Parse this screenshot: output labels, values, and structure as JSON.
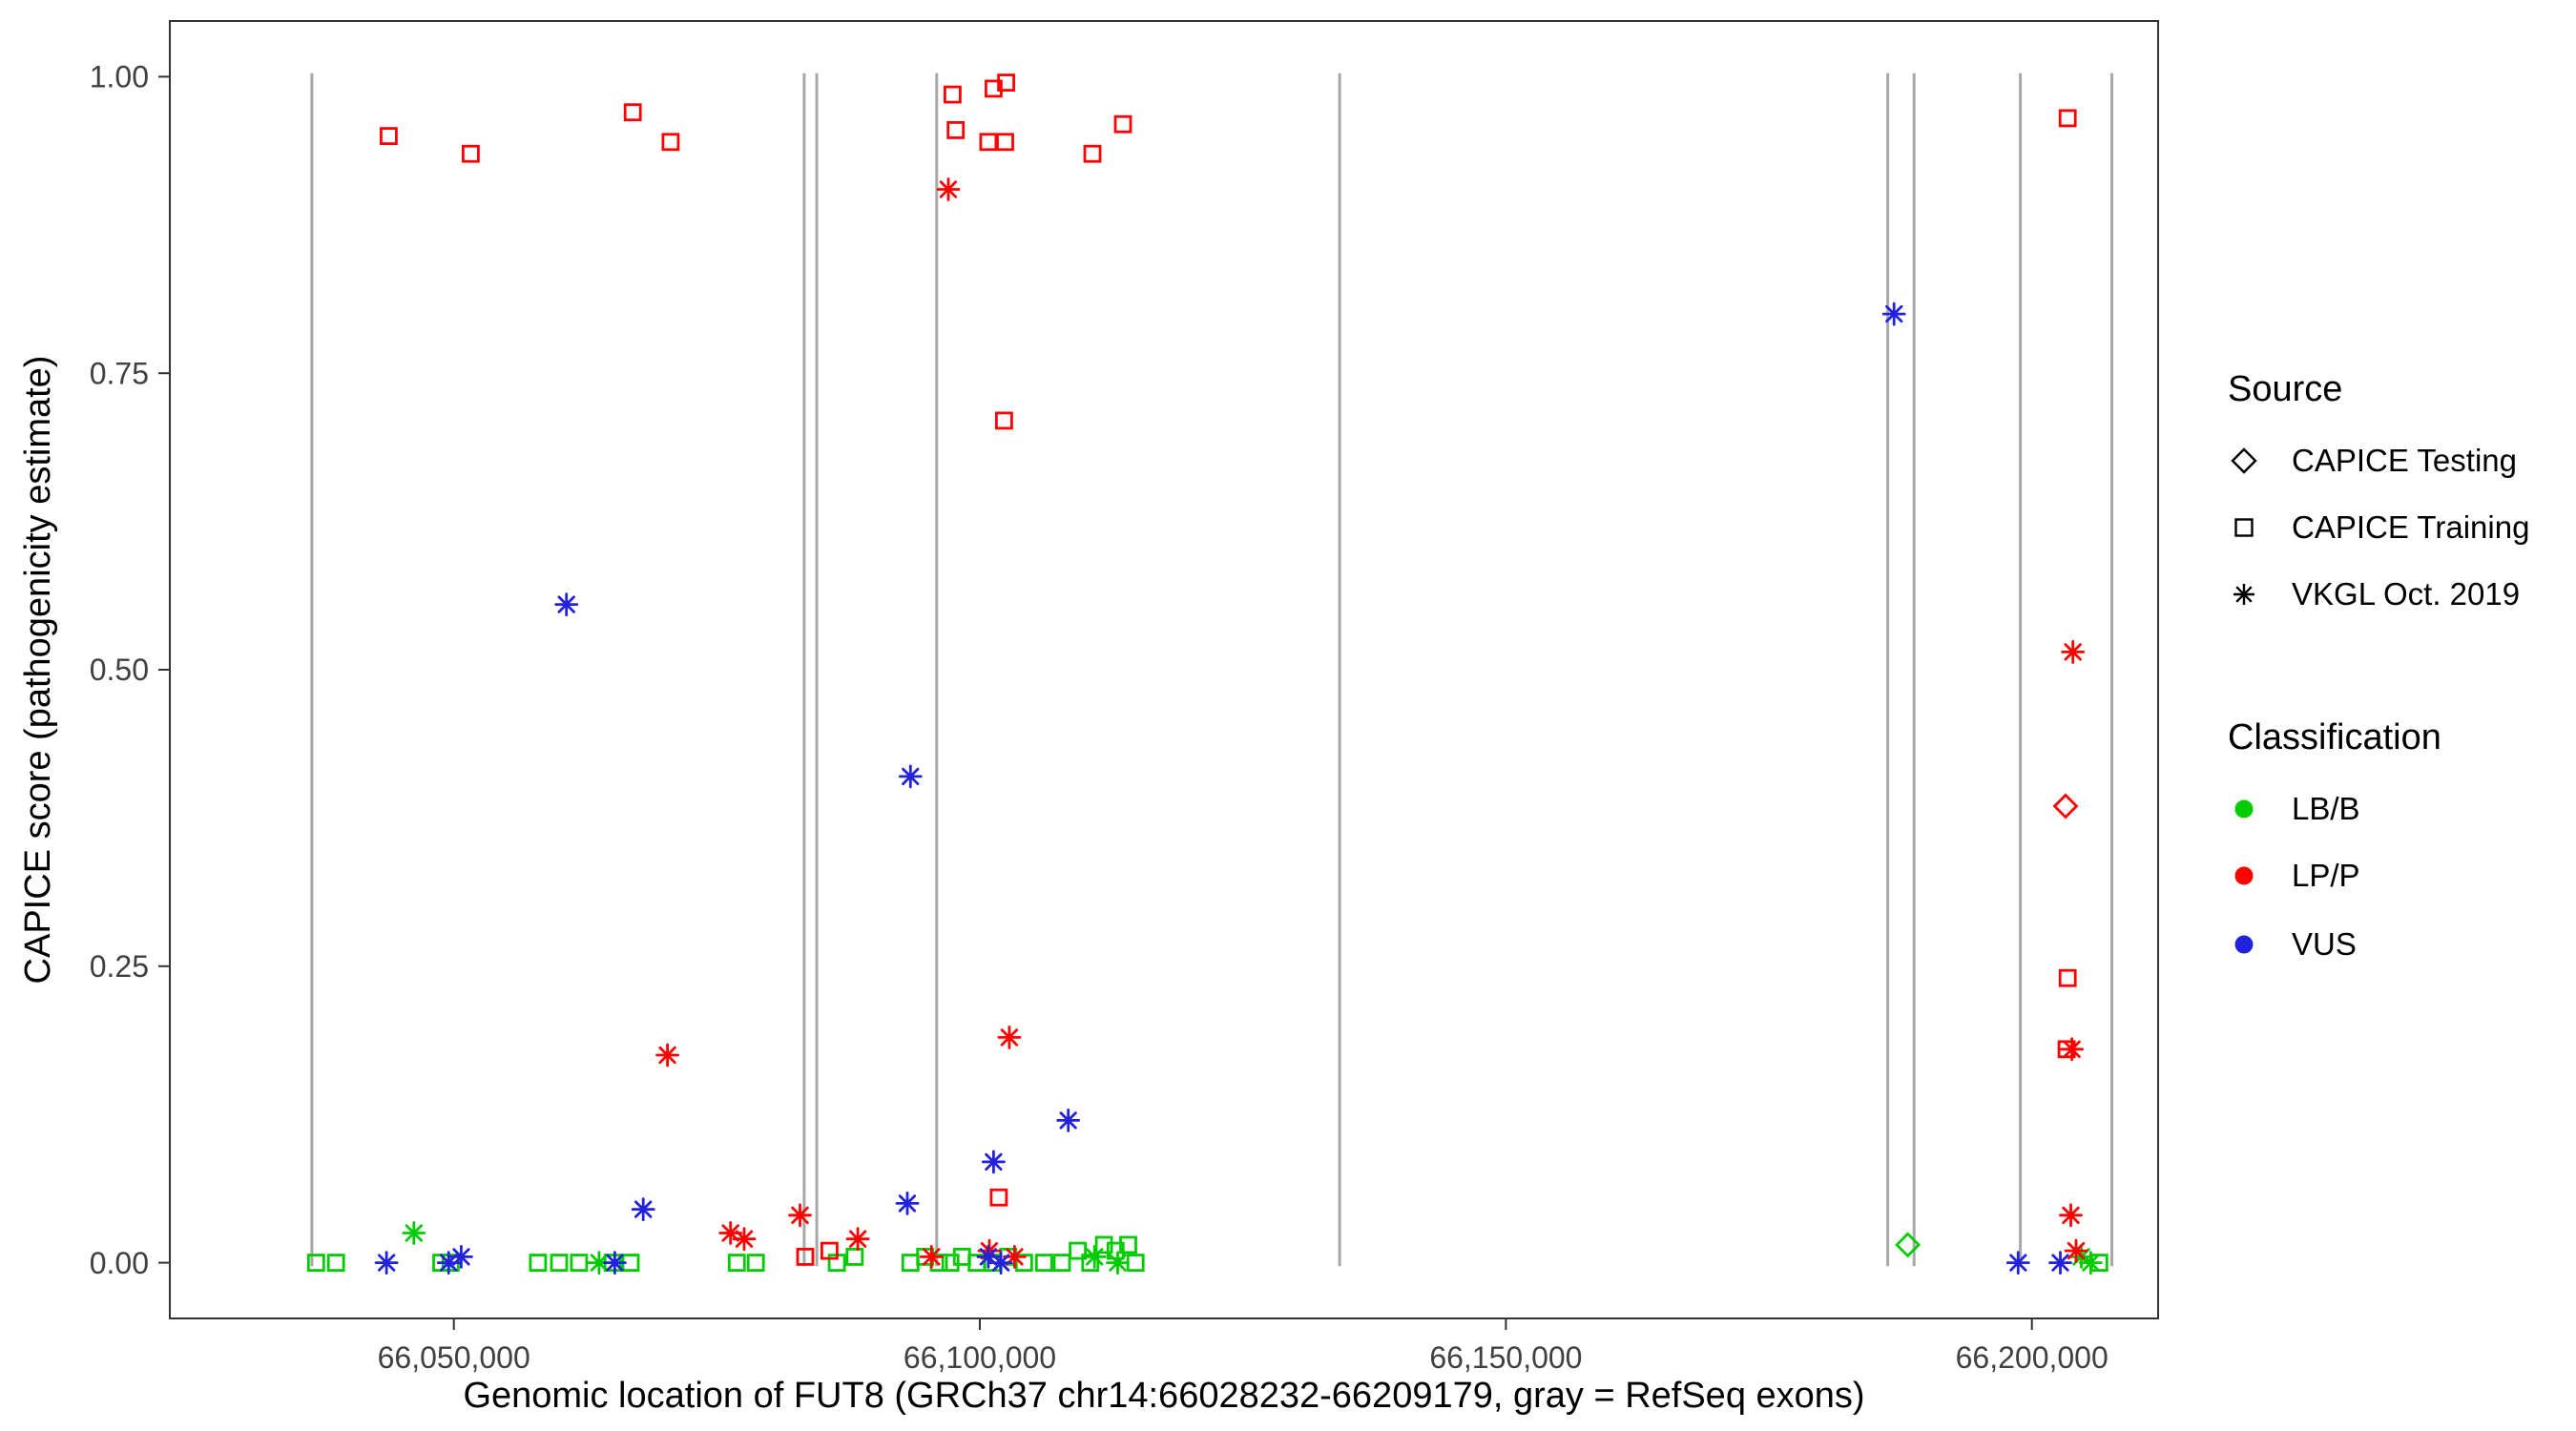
{
  "figure": {
    "background": "#FFFFFF"
  },
  "chart_data": {
    "type": "scatter",
    "title": "",
    "xlabel": "Genomic location of FUT8 (GRCh37 chr14:66028232-66209179, gray = RefSeq exons)",
    "ylabel": "CAPICE score (pathogenicity estimate)",
    "xlim": [
      66023000,
      66212000
    ],
    "ylim": [
      -0.047,
      1.047
    ],
    "grid": false,
    "panel_border_color": "#333333",
    "exon_color": "#A8A8A8",
    "x_ticks": [
      {
        "value": 66050000,
        "label": "66,050,000"
      },
      {
        "value": 66100000,
        "label": "66,100,000"
      },
      {
        "value": 66150000,
        "label": "66,150,000"
      },
      {
        "value": 66200000,
        "label": "66,200,000"
      }
    ],
    "y_ticks": [
      {
        "value": 0.0,
        "label": "0.00"
      },
      {
        "value": 0.25,
        "label": "0.25"
      },
      {
        "value": 0.5,
        "label": "0.50"
      },
      {
        "value": 0.75,
        "label": "0.75"
      },
      {
        "value": 1.0,
        "label": "1.00"
      }
    ],
    "refseq_exons_x": [
      66036500,
      66083300,
      66084500,
      66095900,
      66134200,
      66186300,
      66188800,
      66198900,
      66207600
    ],
    "colors": {
      "LB/B": "#00CC00",
      "LP/P": "#FF0000",
      "VUS": "#2222DD"
    },
    "shapes": {
      "CAPICE Testing": "diamond",
      "CAPICE Training": "square",
      "VKGL Oct. 2019": "asterisk"
    },
    "series": [
      {
        "source": "CAPICE Testing",
        "classification": "LB/B",
        "points": [
          [
            66188200,
            0.015
          ]
        ]
      },
      {
        "source": "CAPICE Testing",
        "classification": "LP/P",
        "points": [
          [
            66203200,
            0.385
          ]
        ]
      },
      {
        "source": "CAPICE Training",
        "classification": "LB/B",
        "points": [
          [
            66036900,
            0.0
          ],
          [
            66038800,
            0.0
          ],
          [
            66048800,
            0.0
          ],
          [
            66049700,
            0.0
          ],
          [
            66058000,
            0.0
          ],
          [
            66060000,
            0.0
          ],
          [
            66061900,
            0.0
          ],
          [
            66065100,
            0.0
          ],
          [
            66066800,
            0.0
          ],
          [
            66076900,
            0.0
          ],
          [
            66078700,
            0.0
          ],
          [
            66086400,
            0.0
          ],
          [
            66088100,
            0.005
          ],
          [
            66093400,
            0.0
          ],
          [
            66094800,
            0.005
          ],
          [
            66096100,
            0.0
          ],
          [
            66097200,
            0.0
          ],
          [
            66098300,
            0.005
          ],
          [
            66099700,
            0.0
          ],
          [
            66101200,
            0.0
          ],
          [
            66102700,
            0.005
          ],
          [
            66104200,
            0.0
          ],
          [
            66106100,
            0.0
          ],
          [
            66107800,
            0.0
          ],
          [
            66109300,
            0.01
          ],
          [
            66110500,
            0.0
          ],
          [
            66111800,
            0.015
          ],
          [
            66112900,
            0.01
          ],
          [
            66114100,
            0.015
          ],
          [
            66114800,
            0.0
          ],
          [
            66206400,
            0.0
          ]
        ]
      },
      {
        "source": "CAPICE Training",
        "classification": "LP/P",
        "points": [
          [
            66043800,
            0.95
          ],
          [
            66051600,
            0.935
          ],
          [
            66067000,
            0.97
          ],
          [
            66070600,
            0.945
          ],
          [
            66097400,
            0.985
          ],
          [
            66097700,
            0.955
          ],
          [
            66100800,
            0.945
          ],
          [
            66101300,
            0.99
          ],
          [
            66102500,
            0.995
          ],
          [
            66102400,
            0.945
          ],
          [
            66102300,
            0.71
          ],
          [
            66110700,
            0.935
          ],
          [
            66113600,
            0.96
          ],
          [
            66203400,
            0.965
          ],
          [
            66203400,
            0.24
          ],
          [
            66203300,
            0.18
          ],
          [
            66101800,
            0.055
          ],
          [
            66083400,
            0.005
          ],
          [
            66085700,
            0.01
          ]
        ]
      },
      {
        "source": "VKGL Oct. 2019",
        "classification": "LB/B",
        "points": [
          [
            66046200,
            0.025
          ],
          [
            66063800,
            0.0
          ],
          [
            66110900,
            0.005
          ],
          [
            66113100,
            0.0
          ],
          [
            66204700,
            0.005
          ],
          [
            66205600,
            0.0
          ]
        ]
      },
      {
        "source": "VKGL Oct. 2019",
        "classification": "LP/P",
        "points": [
          [
            66097000,
            0.905
          ],
          [
            66070300,
            0.175
          ],
          [
            66102800,
            0.19
          ],
          [
            66203900,
            0.515
          ],
          [
            66203800,
            0.18
          ],
          [
            66203700,
            0.04
          ],
          [
            66076300,
            0.025
          ],
          [
            66077600,
            0.02
          ],
          [
            66082900,
            0.04
          ],
          [
            66088400,
            0.02
          ],
          [
            66095400,
            0.005
          ],
          [
            66100900,
            0.01
          ],
          [
            66103300,
            0.005
          ],
          [
            66204200,
            0.01
          ]
        ]
      },
      {
        "source": "VKGL Oct. 2019",
        "classification": "VUS",
        "points": [
          [
            66060700,
            0.555
          ],
          [
            66093400,
            0.41
          ],
          [
            66186900,
            0.8
          ],
          [
            66068000,
            0.045
          ],
          [
            66093100,
            0.05
          ],
          [
            66101300,
            0.085
          ],
          [
            66108400,
            0.12
          ],
          [
            66043600,
            0.0
          ],
          [
            66049500,
            0.0
          ],
          [
            66050700,
            0.005
          ],
          [
            66065300,
            0.0
          ],
          [
            66100800,
            0.005
          ],
          [
            66102000,
            0.0
          ],
          [
            66198700,
            0.0
          ],
          [
            66202700,
            0.0
          ]
        ]
      }
    ]
  },
  "legend": {
    "source": {
      "title": "Source",
      "items": [
        {
          "label": "CAPICE Testing",
          "shape": "diamond"
        },
        {
          "label": "CAPICE Training",
          "shape": "square"
        },
        {
          "label": "VKGL Oct. 2019",
          "shape": "asterisk"
        }
      ]
    },
    "classification": {
      "title": "Classification",
      "items": [
        {
          "label": "LB/B",
          "color": "#00CC00"
        },
        {
          "label": "LP/P",
          "color": "#FF0000"
        },
        {
          "label": "VUS",
          "color": "#2222DD"
        }
      ]
    }
  }
}
